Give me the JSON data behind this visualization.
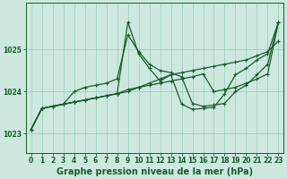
{
  "background_color": "#cce8df",
  "grid_color": "#99ccbb",
  "line_color": "#1a5c2a",
  "title": "Graphe pression niveau de la mer (hPa)",
  "xlim": [
    -0.5,
    23.5
  ],
  "ylim": [
    1022.55,
    1026.1
  ],
  "yticks": [
    1023,
    1024,
    1025
  ],
  "xticks": [
    0,
    1,
    2,
    3,
    4,
    5,
    6,
    7,
    8,
    9,
    10,
    11,
    12,
    13,
    14,
    15,
    16,
    17,
    18,
    19,
    20,
    21,
    22,
    23
  ],
  "s1": [
    1023.1,
    1023.6,
    1023.65,
    1023.7,
    1023.75,
    1023.8,
    1023.85,
    1023.9,
    1023.95,
    1024.0,
    1024.1,
    1024.2,
    1024.3,
    1024.4,
    1024.45,
    1024.5,
    1024.55,
    1024.6,
    1024.65,
    1024.7,
    1024.75,
    1024.85,
    1024.95,
    1025.2
  ],
  "s2": [
    1023.1,
    1023.6,
    1023.65,
    1023.7,
    1024.0,
    1024.1,
    1024.15,
    1024.2,
    1024.3,
    1025.35,
    1024.95,
    1024.65,
    1024.5,
    1024.45,
    1024.35,
    1023.72,
    1023.65,
    1023.68,
    1023.72,
    1024.0,
    1024.15,
    1024.4,
    1024.65,
    1025.65
  ],
  "s3": [
    1023.1,
    1023.6,
    1023.65,
    1023.7,
    1023.75,
    1023.8,
    1023.85,
    1023.9,
    1023.95,
    1025.65,
    1024.9,
    1024.55,
    1024.25,
    1024.4,
    1023.7,
    1023.58,
    1023.6,
    1023.63,
    1023.95,
    1024.4,
    1024.55,
    1024.75,
    1024.9,
    1025.65
  ],
  "s4": [
    1023.1,
    1023.6,
    1023.65,
    1023.7,
    1023.75,
    1023.8,
    1023.85,
    1023.9,
    1023.95,
    1024.05,
    1024.1,
    1024.15,
    1024.2,
    1024.25,
    1024.3,
    1024.35,
    1024.42,
    1024.0,
    1024.05,
    1024.1,
    1024.2,
    1024.3,
    1024.42,
    1025.65
  ],
  "marker": "+",
  "markersize": 3,
  "linewidth": 0.9,
  "title_fontsize": 7,
  "tick_fontsize": 5.5
}
